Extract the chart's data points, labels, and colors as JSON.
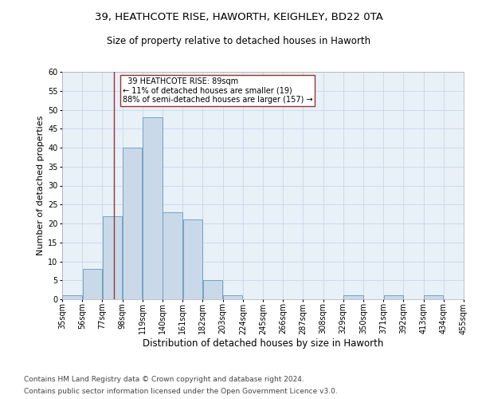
{
  "title_line1": "39, HEATHCOTE RISE, HAWORTH, KEIGHLEY, BD22 0TA",
  "title_line2": "Size of property relative to detached houses in Haworth",
  "xlabel": "Distribution of detached houses by size in Haworth",
  "ylabel": "Number of detached properties",
  "footer_line1": "Contains HM Land Registry data © Crown copyright and database right 2024.",
  "footer_line2": "Contains public sector information licensed under the Open Government Licence v3.0.",
  "bar_edges": [
    35,
    56,
    77,
    98,
    119,
    140,
    161,
    182,
    203,
    224,
    245,
    266,
    287,
    308,
    329,
    350,
    371,
    392,
    413,
    434,
    455
  ],
  "bar_values": [
    1,
    8,
    22,
    40,
    48,
    23,
    21,
    5,
    1,
    0,
    0,
    0,
    0,
    0,
    1,
    0,
    1,
    0,
    1,
    0
  ],
  "bar_color": "#c9d9e9",
  "bar_edgecolor": "#6699bb",
  "vline_x": 89,
  "vline_color": "#993333",
  "annotation_text": "  39 HEATHCOTE RISE: 89sqm\n← 11% of detached houses are smaller (19)\n88% of semi-detached houses are larger (157) →",
  "annotation_box_color": "#ffffff",
  "annotation_box_edgecolor": "#993333",
  "ylim": [
    0,
    60
  ],
  "yticks": [
    0,
    5,
    10,
    15,
    20,
    25,
    30,
    35,
    40,
    45,
    50,
    55,
    60
  ],
  "grid_color": "#c8d8e8",
  "bg_color": "#e8f0f8",
  "title_fontsize": 9.5,
  "subtitle_fontsize": 8.5,
  "axis_label_fontsize": 8,
  "tick_fontsize": 7,
  "footer_fontsize": 6.5
}
